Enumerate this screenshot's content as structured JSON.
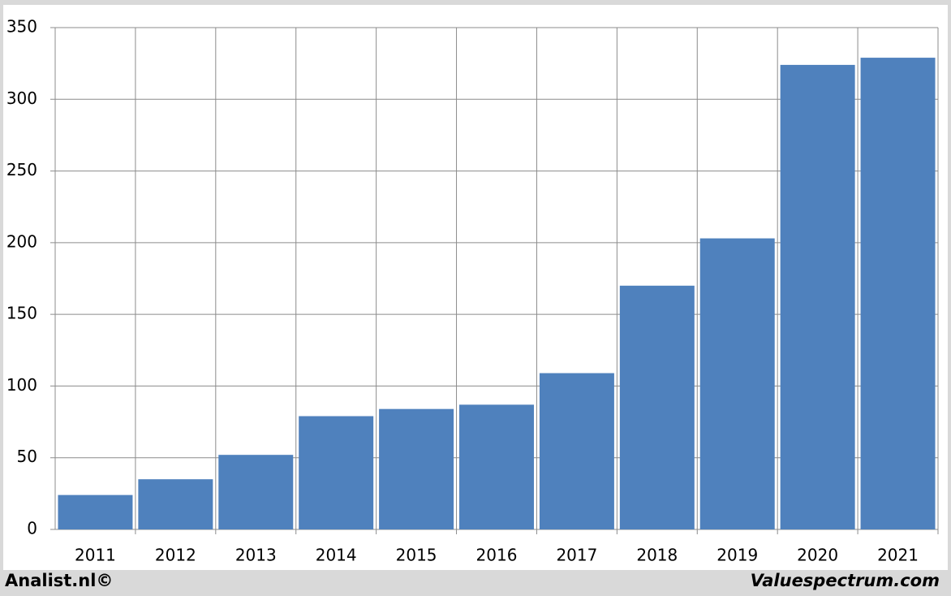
{
  "chart_data": {
    "type": "bar",
    "categories": [
      "2011",
      "2012",
      "2013",
      "2014",
      "2015",
      "2016",
      "2017",
      "2018",
      "2019",
      "2020",
      "2021"
    ],
    "values": [
      24,
      35,
      52,
      79,
      84,
      87,
      109,
      170,
      203,
      324,
      329
    ],
    "color": "#4f81bd",
    "ylim": [
      0,
      350
    ],
    "yticks": [
      0,
      50,
      100,
      150,
      200,
      250,
      300,
      350
    ],
    "grid": true,
    "credits": [
      "Analist.nl©",
      "Valuespectrum.com"
    ]
  }
}
